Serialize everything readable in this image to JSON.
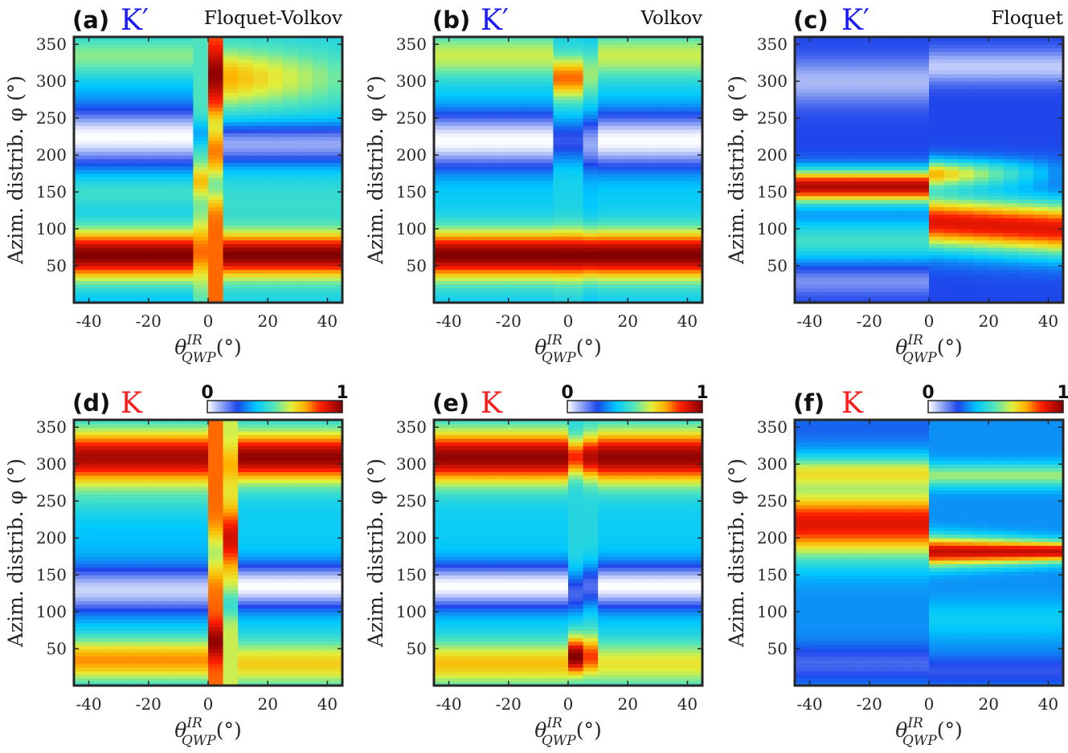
{
  "chart_data": [
    {
      "type": "heatmap",
      "panel": "(a)",
      "valley": "K′",
      "valley_color": "#1a1aff",
      "method": "Floquet-Volkov",
      "xlabel": "θ_QWP^IR(°)",
      "ylabel": "Azim. distrib. φ (°)",
      "xlim": [
        -45,
        45
      ],
      "ylim": [
        0,
        360
      ],
      "xticks": [
        "-40",
        "-20",
        "0",
        "20",
        "40"
      ],
      "yticks": [
        "50",
        "100",
        "150",
        "200",
        "250",
        "300",
        "350"
      ],
      "colorbar": null
    },
    {
      "type": "heatmap",
      "panel": "(b)",
      "valley": "K′",
      "valley_color": "#1a1aff",
      "method": "Volkov",
      "xlabel": "θ_QWP^IR(°)",
      "ylabel": "Azim. distrib. φ (°)",
      "xlim": [
        -45,
        45
      ],
      "ylim": [
        0,
        360
      ],
      "xticks": [
        "-40",
        "-20",
        "0",
        "20",
        "40"
      ],
      "yticks": [
        "50",
        "100",
        "150",
        "200",
        "250",
        "300",
        "350"
      ],
      "colorbar": null
    },
    {
      "type": "heatmap",
      "panel": "(c)",
      "valley": "K′",
      "valley_color": "#1a1aff",
      "method": "Floquet",
      "xlabel": "θ_QWP^IR(°)",
      "ylabel": "Azim. distrib. φ (°)",
      "xlim": [
        -45,
        45
      ],
      "ylim": [
        0,
        360
      ],
      "xticks": [
        "-40",
        "-20",
        "0",
        "20",
        "40"
      ],
      "yticks": [
        "50",
        "100",
        "150",
        "200",
        "250",
        "300",
        "350"
      ],
      "colorbar": null
    },
    {
      "type": "heatmap",
      "panel": "(d)",
      "valley": "K",
      "valley_color": "#ff1a1a",
      "method": "",
      "xlabel": "θ_QWP^IR(°)",
      "ylabel": "Azim. distrib. φ (°)",
      "xlim": [
        -45,
        45
      ],
      "ylim": [
        0,
        360
      ],
      "xticks": [
        "-40",
        "-20",
        "0",
        "20",
        "40"
      ],
      "yticks": [
        "50",
        "100",
        "150",
        "200",
        "250",
        "300",
        "350"
      ],
      "colorbar": {
        "min_label": "0",
        "max_label": "1",
        "range": [
          0,
          1
        ]
      }
    },
    {
      "type": "heatmap",
      "panel": "(e)",
      "valley": "K",
      "valley_color": "#ff1a1a",
      "method": "",
      "xlabel": "θ_QWP^IR(°)",
      "ylabel": "Azim. distrib. φ (°)",
      "xlim": [
        -45,
        45
      ],
      "ylim": [
        0,
        360
      ],
      "xticks": [
        "-40",
        "-20",
        "0",
        "20",
        "40"
      ],
      "yticks": [
        "50",
        "100",
        "150",
        "200",
        "250",
        "300",
        "350"
      ],
      "colorbar": {
        "min_label": "0",
        "max_label": "1",
        "range": [
          0,
          1
        ]
      }
    },
    {
      "type": "heatmap",
      "panel": "(f)",
      "valley": "K",
      "valley_color": "#ff1a1a",
      "method": "",
      "xlabel": "θ_QWP^IR(°)",
      "ylabel": "Azim. distrib. φ (°)",
      "xlim": [
        -45,
        45
      ],
      "ylim": [
        0,
        360
      ],
      "xticks": [
        "-40",
        "-20",
        "0",
        "20",
        "40"
      ],
      "yticks": [
        "50",
        "100",
        "150",
        "200",
        "250",
        "300",
        "350"
      ],
      "colorbar": {
        "min_label": "0",
        "max_label": "1",
        "range": [
          0,
          1
        ]
      }
    }
  ]
}
